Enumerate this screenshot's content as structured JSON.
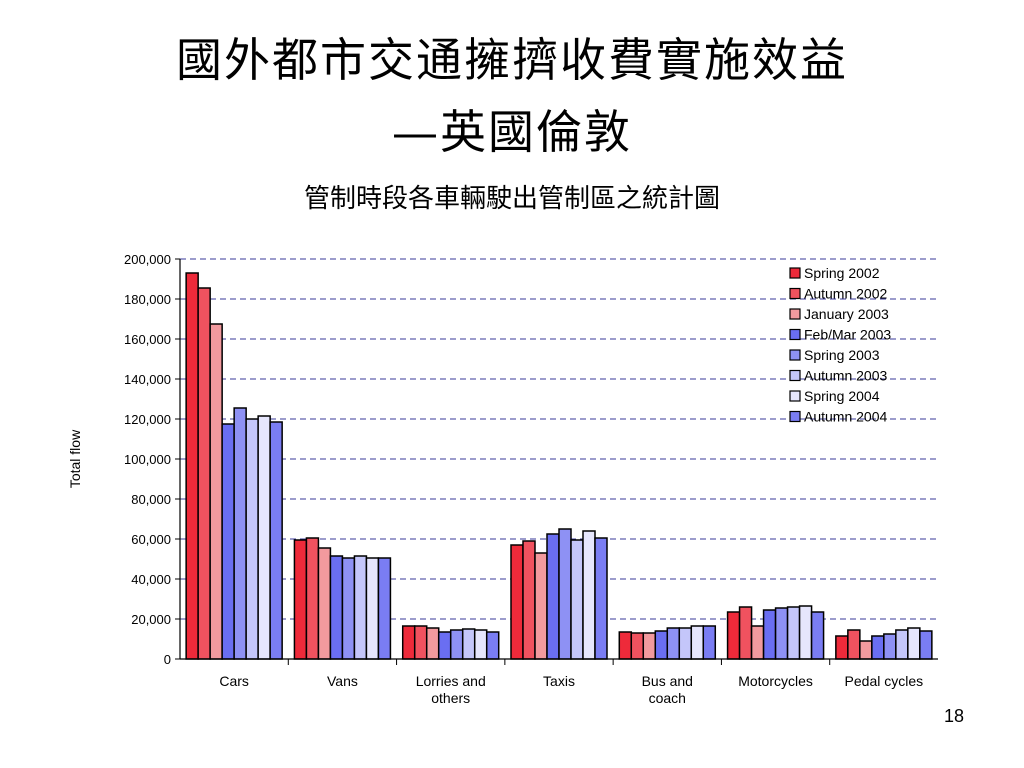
{
  "slide": {
    "title_line1": "國外都市交通擁擠收費實施效益",
    "title_line2": "—英國倫敦",
    "subtitle": "管制時段各車輛駛出管制區之統計圖",
    "page_number": "18"
  },
  "chart_data": {
    "type": "bar",
    "title": "管制時段各車輛駛出管制區之統計圖",
    "ylabel": "Total flow",
    "xlabel": "",
    "ylim": [
      0,
      200000
    ],
    "ytick_step": 20000,
    "ytick_labels": [
      "0",
      "20,000",
      "40,000",
      "60,000",
      "80,000",
      "100,000",
      "120,000",
      "140,000",
      "160,000",
      "180,000",
      "200,000"
    ],
    "grid": true,
    "legend_position": "top-right",
    "categories": [
      "Cars",
      "Vans",
      "Lorries and others",
      "Taxis",
      "Bus and coach",
      "Motorcycles",
      "Pedal cycles"
    ],
    "category_labels": [
      [
        "Cars"
      ],
      [
        "Vans"
      ],
      [
        "Lorries and",
        "others"
      ],
      [
        "Taxis"
      ],
      [
        "Bus and",
        "coach"
      ],
      [
        "Motorcycles"
      ],
      [
        "Pedal cycles"
      ]
    ],
    "series": [
      {
        "name": "Spring 2002",
        "color": "#ee2a3a",
        "values": [
          193000,
          59500,
          16500,
          57000,
          13500,
          23500,
          11500
        ]
      },
      {
        "name": "Autumn 2002",
        "color": "#f0525f",
        "values": [
          185500,
          60500,
          16500,
          59000,
          13000,
          26000,
          14500
        ]
      },
      {
        "name": "January 2003",
        "color": "#f29a9e",
        "values": [
          167500,
          55500,
          15500,
          53000,
          13000,
          16500,
          9000
        ]
      },
      {
        "name": "Feb/Mar 2003",
        "color": "#6a6ef2",
        "values": [
          117500,
          51500,
          13500,
          62500,
          14000,
          24500,
          11500
        ]
      },
      {
        "name": "Spring 2003",
        "color": "#8e91f4",
        "values": [
          125500,
          50500,
          14500,
          65000,
          15500,
          25500,
          12500
        ]
      },
      {
        "name": "Autumn 2003",
        "color": "#c4c6fa",
        "values": [
          120000,
          51500,
          15000,
          59500,
          15500,
          26000,
          14500
        ]
      },
      {
        "name": "Spring 2004",
        "color": "#e6e6fd",
        "values": [
          121500,
          50500,
          14500,
          64000,
          16500,
          26500,
          15500
        ]
      },
      {
        "name": "Autumn 2004",
        "color": "#7a7df3",
        "values": [
          118500,
          50500,
          13500,
          60500,
          16500,
          23500,
          14000
        ]
      }
    ]
  }
}
